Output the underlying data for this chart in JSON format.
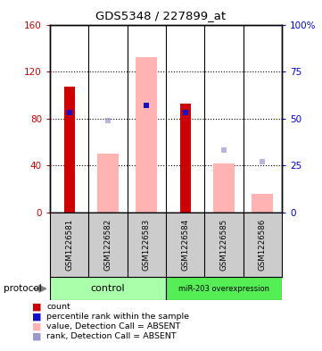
{
  "title": "GDS5348 / 227899_at",
  "samples": [
    "GSM1226581",
    "GSM1226582",
    "GSM1226583",
    "GSM1226584",
    "GSM1226585",
    "GSM1226586"
  ],
  "red_bars": [
    107,
    0,
    0,
    93,
    0,
    0
  ],
  "pink_bars": [
    0,
    50,
    132,
    0,
    42,
    16
  ],
  "blue_squares_pct": [
    53,
    0,
    57,
    53,
    0,
    0
  ],
  "light_blue_squares_pct": [
    0,
    49,
    0,
    0,
    33,
    27
  ],
  "ylim_left": [
    0,
    160
  ],
  "ylim_right": [
    0,
    100
  ],
  "yticks_left": [
    0,
    40,
    80,
    120,
    160
  ],
  "yticks_right": [
    0,
    25,
    50,
    75,
    100
  ],
  "ytick_labels_left": [
    "0",
    "40",
    "80",
    "120",
    "160"
  ],
  "ytick_labels_right": [
    "0",
    "25",
    "50",
    "75",
    "100%"
  ],
  "legend_items": [
    {
      "color": "#cc0000",
      "label": "count"
    },
    {
      "color": "#0000cc",
      "label": "percentile rank within the sample"
    },
    {
      "color": "#ffaaaa",
      "label": "value, Detection Call = ABSENT"
    },
    {
      "color": "#aaaadd",
      "label": "rank, Detection Call = ABSENT"
    }
  ],
  "control_color": "#aaffaa",
  "mir_color": "#55ee55",
  "sample_bg": "#cccccc",
  "pink_color": "#ffb3b3",
  "blue_sq_color": "#1111cc",
  "lblue_sq_color": "#9999cc"
}
